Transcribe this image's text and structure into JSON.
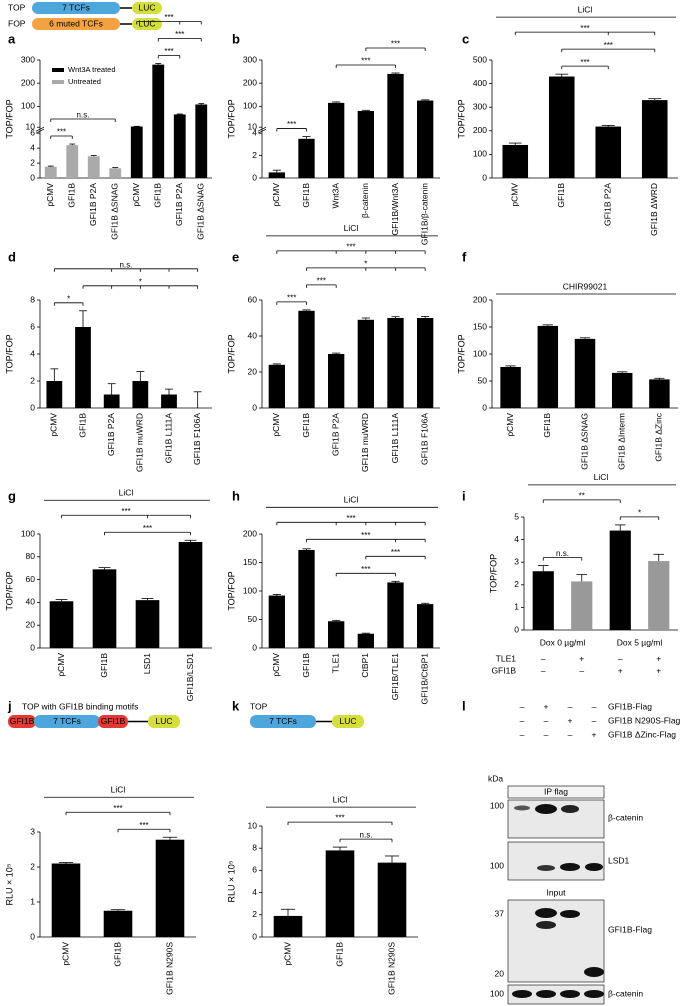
{
  "chart_data": [
    {
      "type": "bar",
      "panel": "a",
      "ylabel": "TOP/FOP",
      "categories": [
        "pCMV",
        "GFI1B",
        "GFI1B P2A",
        "GFI1B ΔSNAG",
        "pCMV",
        "GFI1B",
        "GFI1B P2A",
        "GFI1B ΔSNAG"
      ],
      "values": [
        1.5,
        4.4,
        2.9,
        1.3,
        13,
        280,
        65,
        108
      ],
      "errors": [
        0.1,
        0.15,
        0.1,
        0.1,
        1,
        5,
        2,
        4
      ],
      "colors": [
        "#aaaaaa",
        "#aaaaaa",
        "#aaaaaa",
        "#aaaaaa",
        "#000000",
        "#000000",
        "#000000",
        "#000000"
      ],
      "ysegments": [
        [
          0,
          6
        ],
        [
          10,
          300
        ]
      ],
      "yticks": [
        0,
        2,
        4,
        6,
        10,
        100,
        200,
        300
      ],
      "legend": [
        {
          "name": "Wnt3A treated",
          "color": "#000000"
        },
        {
          "name": "Untreated",
          "color": "#aaaaaa"
        }
      ],
      "annotations": [
        {
          "label": "***",
          "from": 0,
          "to": [
            1
          ]
        },
        {
          "label": "n.s.",
          "from": 0,
          "to": [
            3
          ]
        },
        {
          "label": "***",
          "from": 5,
          "to": [
            6
          ]
        },
        {
          "label": "***",
          "from": 5,
          "to": [
            7
          ]
        },
        {
          "label": "***",
          "from": 4,
          "to": [
            6,
            7
          ]
        }
      ]
    },
    {
      "type": "bar",
      "panel": "b",
      "ylabel": "TOP/FOP",
      "categories": [
        "pCMV",
        "GFI1B",
        "Wnt3A",
        "β-catenin",
        "GFI1B/Wnt3A",
        "GFI1B/β-catenin"
      ],
      "values": [
        0.5,
        3.5,
        115,
        80,
        240,
        125
      ],
      "errors": [
        0.2,
        0.2,
        4,
        3,
        4,
        3
      ],
      "colors": [
        "#000000",
        "#000000",
        "#000000",
        "#000000",
        "#000000",
        "#000000"
      ],
      "ysegments": [
        [
          0,
          4
        ],
        [
          10,
          300
        ]
      ],
      "yticks": [
        0,
        2,
        4,
        10,
        100,
        200,
        300
      ],
      "annotations": [
        {
          "label": "***",
          "from": 0,
          "to": [
            1
          ]
        },
        {
          "label": "***",
          "from": 2,
          "to": [
            4
          ]
        },
        {
          "label": "***",
          "from": 3,
          "to": [
            5
          ]
        }
      ]
    },
    {
      "type": "bar",
      "panel": "c",
      "ylabel": "TOP/FOP",
      "treatment": "LiCl",
      "categories": [
        "pCMV",
        "GFI1B",
        "GFI1B P2A",
        "GFI1B ΔWRD"
      ],
      "values": [
        140,
        430,
        218,
        330
      ],
      "errors": [
        8,
        10,
        5,
        6
      ],
      "colors": [
        "#000000",
        "#000000",
        "#000000",
        "#000000"
      ],
      "ylim": [
        0,
        500
      ],
      "yticks": [
        0,
        100,
        200,
        300,
        400,
        500
      ],
      "annotations": [
        {
          "label": "***",
          "from": 1,
          "to": [
            2
          ]
        },
        {
          "label": "***",
          "from": 1,
          "to": [
            3
          ]
        },
        {
          "label": "***",
          "from": 0,
          "to": [
            2,
            3
          ]
        }
      ]
    },
    {
      "type": "bar",
      "panel": "d",
      "ylabel": "TOP/FOP",
      "categories": [
        "pCMV",
        "GFI1B",
        "GFI1B P2A",
        "GFI1B muWRD",
        "GFI1B L111A",
        "GFI1B F106A"
      ],
      "values": [
        2,
        6,
        1,
        2,
        1,
        0
      ],
      "errors": [
        0.9,
        1.2,
        0.8,
        0.7,
        0.4,
        1.2
      ],
      "colors": [
        "#000000",
        "#000000",
        "#000000",
        "#000000",
        "#000000",
        "#000000"
      ],
      "ylim": [
        0,
        8
      ],
      "yticks": [
        0,
        2,
        4,
        6,
        8
      ],
      "annotations": [
        {
          "label": "*",
          "from": 0,
          "to": [
            1
          ]
        },
        {
          "label": "*",
          "from": 1,
          "to": [
            2,
            3,
            4,
            5
          ]
        },
        {
          "label": "n.s.",
          "from": 0,
          "to": [
            2,
            3,
            4,
            5
          ]
        }
      ]
    },
    {
      "type": "bar",
      "panel": "e",
      "ylabel": "TOP/FOP",
      "treatment": "LiCl",
      "categories": [
        "pCMV",
        "GFI1B",
        "GFI1B P2A",
        "GFI1B muWRD",
        "GFI1B L111A",
        "GFI1B F106A"
      ],
      "values": [
        24,
        54,
        30,
        49,
        50,
        50
      ],
      "errors": [
        0.5,
        0.5,
        0.5,
        1,
        0.7,
        0.8
      ],
      "colors": [
        "#000000",
        "#000000",
        "#000000",
        "#000000",
        "#000000",
        "#000000"
      ],
      "ylim": [
        0,
        60
      ],
      "yticks": [
        0,
        20,
        40,
        60
      ],
      "annotations": [
        {
          "label": "***",
          "from": 0,
          "to": [
            1
          ]
        },
        {
          "label": "***",
          "from": 1,
          "to": [
            2
          ]
        },
        {
          "label": "*",
          "from": 1,
          "to": [
            3,
            4,
            5
          ]
        },
        {
          "label": "***",
          "from": 0,
          "to": [
            2,
            3,
            4,
            5
          ]
        }
      ]
    },
    {
      "type": "bar",
      "panel": "f",
      "ylabel": "TOP/FOP",
      "treatment": "CHIR99021",
      "categories": [
        "pCMV",
        "GFI1B",
        "GFI1B ΔSNAG",
        "GFI1B ΔInterm",
        "GFI1B ΔZinc"
      ],
      "values": [
        76,
        152,
        128,
        65,
        53
      ],
      "errors": [
        2,
        2,
        2,
        2,
        2
      ],
      "colors": [
        "#000000",
        "#000000",
        "#000000",
        "#000000",
        "#000000"
      ],
      "ylim": [
        0,
        200
      ],
      "yticks": [
        0,
        50,
        100,
        150,
        200
      ]
    },
    {
      "type": "bar",
      "panel": "g",
      "ylabel": "TOP/FOP",
      "treatment": "LiCl",
      "categories": [
        "pCMV",
        "GFI1B",
        "LSD1",
        "GFI1B/LSD1"
      ],
      "values": [
        41,
        69,
        42,
        93
      ],
      "errors": [
        1.5,
        1.5,
        1.5,
        1.5
      ],
      "colors": [
        "#000000",
        "#000000",
        "#000000",
        "#000000"
      ],
      "ylim": [
        0,
        100
      ],
      "yticks": [
        0,
        20,
        40,
        60,
        80,
        100
      ],
      "annotations": [
        {
          "label": "***",
          "from": 1,
          "to": [
            3
          ]
        },
        {
          "label": "***",
          "from": 0,
          "to": [
            2,
            3
          ]
        }
      ]
    },
    {
      "type": "bar",
      "panel": "h",
      "ylabel": "TOP/FOP",
      "treatment": "LiCl",
      "categories": [
        "pCMV",
        "GFI1B",
        "TLE1",
        "CtBP1",
        "GFI1B/TLE1",
        "GFI1B/CtBP1"
      ],
      "values": [
        92,
        172,
        47,
        25,
        115,
        77
      ],
      "errors": [
        2,
        2,
        1.5,
        1,
        2,
        1.5
      ],
      "colors": [
        "#000000",
        "#000000",
        "#000000",
        "#000000",
        "#000000",
        "#000000"
      ],
      "ylim": [
        0,
        200
      ],
      "yticks": [
        0,
        50,
        100,
        150,
        200
      ],
      "annotations": [
        {
          "label": "***",
          "from": 2,
          "to": [
            4
          ]
        },
        {
          "label": "***",
          "from": 3,
          "to": [
            5
          ]
        },
        {
          "label": "***",
          "from": 1,
          "to": [
            4,
            5
          ]
        },
        {
          "label": "***",
          "from": 0,
          "to": [
            2,
            3,
            4,
            5
          ]
        }
      ]
    },
    {
      "type": "bar",
      "panel": "i",
      "ylabel": "TOP/FOP",
      "treatment": "LiCl",
      "groups": [
        "Dox 0 µg/ml",
        "Dox 5 µg/ml"
      ],
      "row_table": [
        {
          "name": "TLE1",
          "marks": [
            "–",
            "+",
            "–",
            "+"
          ]
        },
        {
          "name": "GFI1B",
          "marks": [
            "–",
            "–",
            "+",
            "+"
          ]
        }
      ],
      "values": [
        2.6,
        2.15,
        4.4,
        3.05
      ],
      "errors": [
        0.25,
        0.3,
        0.25,
        0.3
      ],
      "colors": [
        "#000000",
        "#999999",
        "#000000",
        "#999999"
      ],
      "ylim": [
        0,
        5
      ],
      "yticks": [
        0,
        1,
        2,
        3,
        4,
        5
      ],
      "annotations": [
        {
          "label": "n.s.",
          "from": 0,
          "to": [
            1
          ]
        },
        {
          "label": "*",
          "from": 2,
          "to": [
            3
          ]
        },
        {
          "label": "**",
          "from": 0,
          "to": [
            2
          ]
        }
      ]
    },
    {
      "type": "bar",
      "panel": "j",
      "ylabel": "RLU × 10⁵",
      "treatment": "LiCl",
      "categories": [
        "pCMV",
        "GFI1B",
        "GFI1B N290S"
      ],
      "values": [
        2.1,
        0.75,
        2.78
      ],
      "errors": [
        0.03,
        0.03,
        0.07
      ],
      "colors": [
        "#000000",
        "#000000",
        "#000000"
      ],
      "ylim": [
        0,
        3
      ],
      "yticks": [
        0,
        1,
        2,
        3
      ],
      "annotations": [
        {
          "label": "***",
          "from": 1,
          "to": [
            2
          ]
        },
        {
          "label": "***",
          "from": 0,
          "to": [
            2
          ]
        }
      ]
    },
    {
      "type": "bar",
      "panel": "k",
      "ylabel": "RLU × 10⁵",
      "treatment": "LiCl",
      "categories": [
        "pCMV",
        "GFI1B",
        "GFI1B N290S"
      ],
      "values": [
        1.9,
        7.8,
        6.7
      ],
      "errors": [
        0.6,
        0.3,
        0.6
      ],
      "colors": [
        "#000000",
        "#000000",
        "#000000"
      ],
      "ylim": [
        0,
        10
      ],
      "yticks": [
        0,
        2,
        4,
        6,
        8,
        10
      ],
      "annotations": [
        {
          "label": "n.s.",
          "from": 1,
          "to": [
            2
          ]
        },
        {
          "label": "***",
          "from": 0,
          "to": [
            2
          ]
        }
      ]
    }
  ],
  "schematics": {
    "a": [
      {
        "name": "TOP",
        "boxes": [
          "7 TCFs",
          "LUC"
        ]
      },
      {
        "name": "FOP",
        "boxes": [
          "6 muted TCFs",
          "LUC"
        ]
      }
    ],
    "j": {
      "title": "TOP with GFI1B binding motifs",
      "boxes": [
        "GFI1B",
        "7 TCFs",
        "GFI1B",
        "LUC"
      ]
    },
    "k": {
      "title": "TOP",
      "boxes": [
        "7 TCFs",
        "LUC"
      ]
    }
  },
  "blot": {
    "panel": "l",
    "conditions": [
      {
        "name": "GFI1B-Flag",
        "marks": [
          "–",
          "+",
          "–",
          "–"
        ]
      },
      {
        "name": "GFI1B N290S-Flag",
        "marks": [
          "–",
          "–",
          "+",
          "–"
        ]
      },
      {
        "name": "GFI1B ΔZinc-Flag",
        "marks": [
          "–",
          "–",
          "–",
          "+"
        ]
      }
    ],
    "unit": "kDa",
    "sections": [
      "IP flag",
      "Input"
    ],
    "blots": [
      {
        "markers": [
          100
        ],
        "label": "β-catenin"
      },
      {
        "markers": [
          100
        ],
        "label": "LSD1"
      },
      {
        "markers": [
          37,
          20
        ],
        "label": "GFI1B-Flag"
      },
      {
        "markers": [
          100
        ],
        "label": "β-catenin"
      }
    ]
  }
}
